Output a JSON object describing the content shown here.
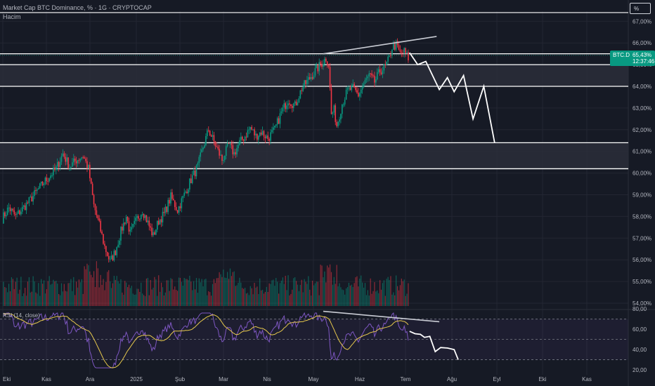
{
  "header": {
    "title": "Market Cap BTC Dominance, % · 1G · CRYPTOCAP",
    "volume_label": "Hacim",
    "scale_mode": "%"
  },
  "price_badge": {
    "symbol": "BTC.D",
    "value": "65,43%",
    "countdown": "12:37:46"
  },
  "colors": {
    "background": "#161a25",
    "up": "#089981",
    "down": "#f23645",
    "grid": "#232632",
    "zone_fill": "#2a2e39",
    "zone_line": "#ffffff",
    "projection": "#ffffff",
    "rsi_line": "#7e57c2",
    "rsi_ma": "#e6c84c",
    "trendline": "#c9ccd4"
  },
  "chart_data": [
    {
      "type": "candlestick",
      "title": "Market Cap BTC Dominance, % · 1G · CRYPTOCAP",
      "x_tick_labels": [
        "Eki",
        "Kas",
        "Ara",
        "2025",
        "Şub",
        "Mar",
        "Nis",
        "May",
        "Haz",
        "Tem",
        "Ağu",
        "Eyl",
        "Eki",
        "Kas"
      ],
      "y_tick_labels": [
        "54,00%",
        "55,00%",
        "56,00%",
        "57,00%",
        "58,00%",
        "59,00%",
        "60,00%",
        "61,00%",
        "62,00%",
        "63,00%",
        "64,00%",
        "65,00%",
        "66,00%",
        "67,00%"
      ],
      "ylim": [
        54,
        67.5
      ],
      "last_value": 65.43,
      "anchors": [
        [
          0,
          57.9
        ],
        [
          5,
          58.4
        ],
        [
          10,
          58.0
        ],
        [
          20,
          58.7
        ],
        [
          30,
          59.5
        ],
        [
          40,
          60.2
        ],
        [
          45,
          60.9
        ],
        [
          50,
          60.3
        ],
        [
          55,
          60.6
        ],
        [
          60,
          60.8
        ],
        [
          64,
          60.2
        ],
        [
          68,
          58.5
        ],
        [
          72,
          57.6
        ],
        [
          76,
          56.6
        ],
        [
          80,
          55.9
        ],
        [
          84,
          56.4
        ],
        [
          88,
          57.3
        ],
        [
          92,
          58.0
        ],
        [
          95,
          57.2
        ],
        [
          100,
          57.9
        ],
        [
          104,
          58.3
        ],
        [
          108,
          57.7
        ],
        [
          112,
          57.1
        ],
        [
          116,
          57.8
        ],
        [
          120,
          58.1
        ],
        [
          125,
          58.9
        ],
        [
          130,
          58.3
        ],
        [
          135,
          59.0
        ],
        [
          140,
          59.7
        ],
        [
          145,
          60.3
        ],
        [
          149,
          61.2
        ],
        [
          153,
          62.0
        ],
        [
          158,
          61.3
        ],
        [
          163,
          60.6
        ],
        [
          168,
          61.3
        ],
        [
          172,
          60.9
        ],
        [
          176,
          61.4
        ],
        [
          180,
          61.7
        ],
        [
          184,
          62.1
        ],
        [
          188,
          61.7
        ],
        [
          192,
          61.9
        ],
        [
          197,
          61.6
        ],
        [
          202,
          62.0
        ],
        [
          207,
          62.8
        ],
        [
          212,
          63.4
        ],
        [
          217,
          63.1
        ],
        [
          222,
          63.9
        ],
        [
          227,
          64.3
        ],
        [
          232,
          64.7
        ],
        [
          236,
          65.0
        ],
        [
          240,
          65.3
        ],
        [
          242,
          65.0
        ],
        [
          244,
          62.7
        ],
        [
          246,
          62.9
        ],
        [
          248,
          62.2
        ],
        [
          252,
          63.2
        ],
        [
          256,
          63.8
        ],
        [
          260,
          63.9
        ],
        [
          264,
          63.6
        ],
        [
          268,
          64.1
        ],
        [
          272,
          64.5
        ],
        [
          276,
          64.2
        ],
        [
          280,
          64.7
        ],
        [
          284,
          64.9
        ],
        [
          287,
          65.3
        ],
        [
          289,
          65.8
        ],
        [
          292,
          65.9
        ],
        [
          295,
          65.5
        ],
        [
          298,
          65.6
        ],
        [
          301,
          65.3
        ]
      ],
      "volume_bars": 301,
      "zones": [
        {
          "from": 64.0,
          "to": 65.0
        },
        {
          "from": 60.2,
          "to": 61.4
        }
      ],
      "horizontal_lines": [
        67.4,
        65.5
      ],
      "trendline": [
        [
          238,
          65.5
        ],
        [
          322,
          66.3
        ]
      ],
      "projection": [
        [
          302,
          65.55
        ],
        [
          308,
          65.0
        ],
        [
          314,
          65.15
        ],
        [
          324,
          63.85
        ],
        [
          330,
          64.4
        ],
        [
          335,
          63.75
        ],
        [
          342,
          64.5
        ],
        [
          349,
          62.5
        ],
        [
          357,
          64.0
        ],
        [
          365,
          61.4
        ]
      ]
    },
    {
      "type": "line",
      "title": "RSI (14, close)",
      "y_tick_labels": [
        "20,00",
        "40,00",
        "60,00",
        "80,00"
      ],
      "ylim": [
        20,
        80
      ],
      "levels": [
        70,
        50,
        30
      ],
      "trendline": [
        [
          238,
          77.7
        ],
        [
          324,
          67.4
        ]
      ],
      "projection": [
        [
          302,
          58.0
        ],
        [
          306,
          55.6
        ],
        [
          310,
          55.0
        ],
        [
          313,
          52.0
        ],
        [
          317,
          53.0
        ],
        [
          321,
          38.0
        ],
        [
          325,
          42.0
        ],
        [
          330,
          41.5
        ],
        [
          335,
          40.0
        ],
        [
          338,
          30.0
        ]
      ]
    }
  ]
}
